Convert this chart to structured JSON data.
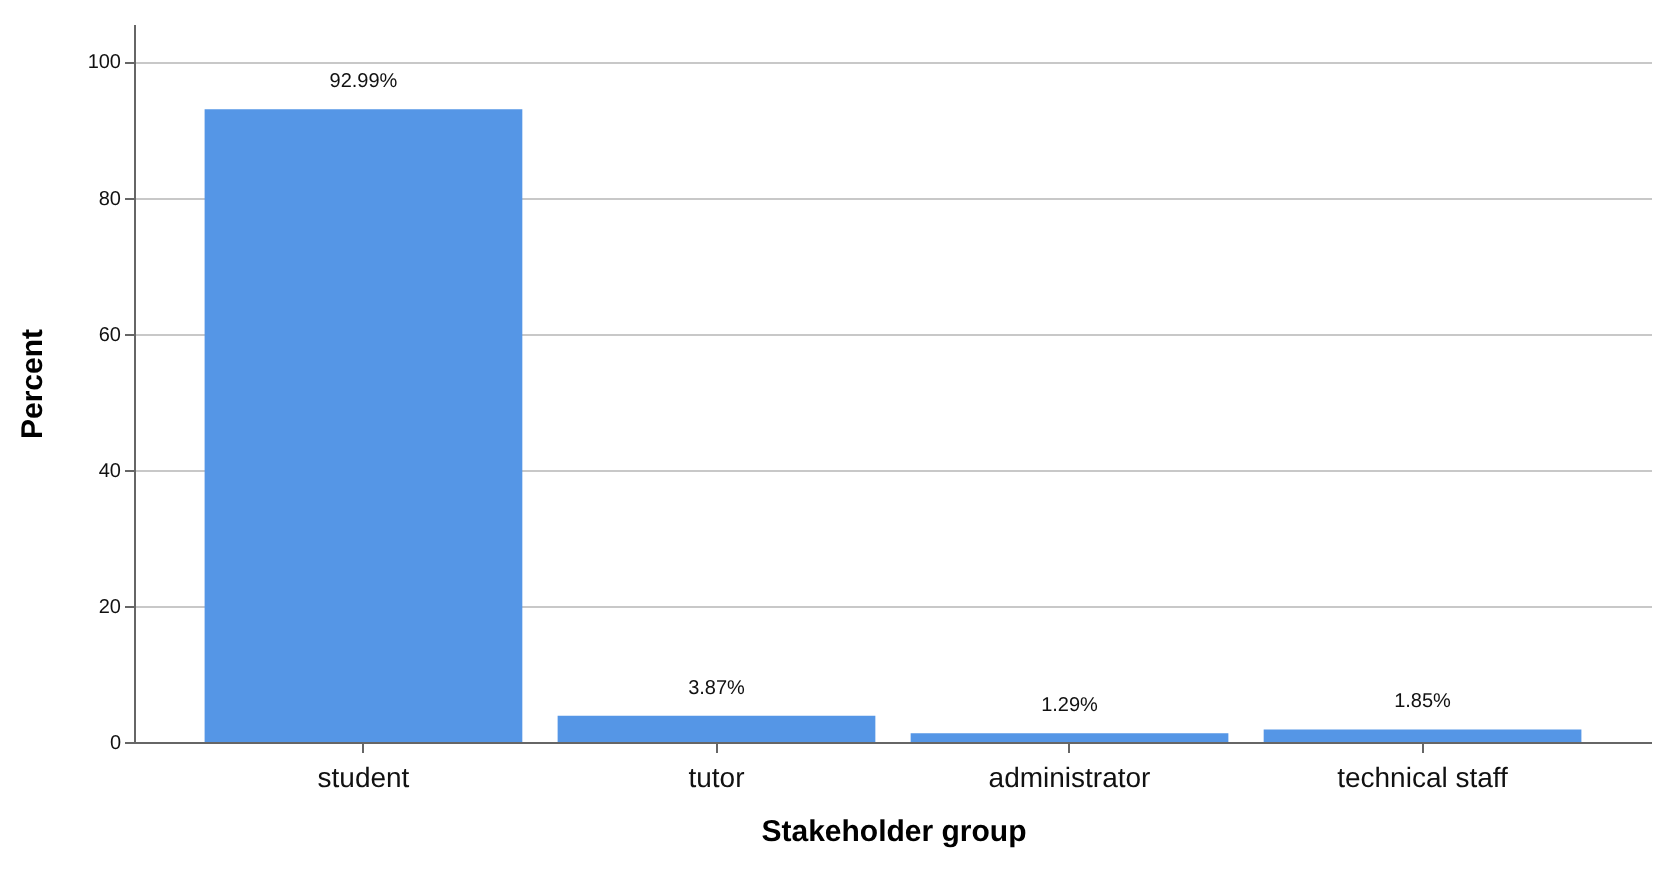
{
  "chart_data": {
    "type": "bar",
    "xlabel": "Stakeholder group",
    "ylabel": "Percent",
    "categories": [
      "student",
      "tutor",
      "administrator",
      "technical staff"
    ],
    "values": [
      92.99,
      3.87,
      1.29,
      1.85
    ],
    "value_labels": [
      "92.99%",
      "3.87%",
      "1.29%",
      "1.85%"
    ],
    "color": "#5596e6",
    "ylim": [
      0,
      105.5
    ],
    "yticks": [
      0,
      20,
      40,
      60,
      80,
      100
    ],
    "grid": "y"
  }
}
